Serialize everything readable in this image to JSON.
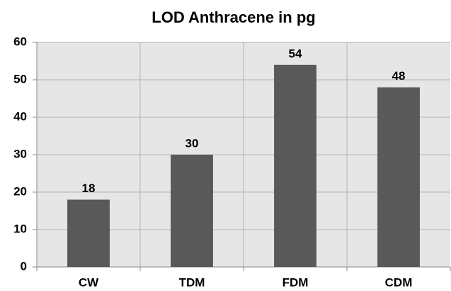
{
  "chart_data": {
    "type": "bar",
    "title": "LOD Anthracene in pg",
    "categories": [
      "CW",
      "TDM",
      "FDM",
      "CDM"
    ],
    "values": [
      18,
      30,
      54,
      48
    ],
    "color": "#595959",
    "ylim": [
      0,
      60
    ],
    "yticks": [
      0,
      10,
      20,
      30,
      40,
      50,
      60
    ],
    "grid": true
  }
}
